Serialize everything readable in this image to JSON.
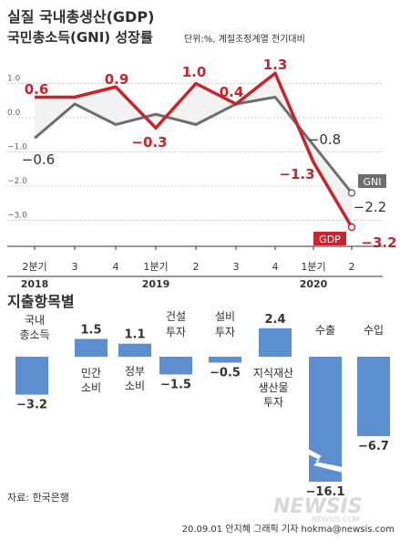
{
  "title_line1": "실질 국내총생산(GDP)",
  "title_line2": "국민총소득(GNI) 성장률",
  "unit_note": "단위:%, 계절조정계열 전기대비",
  "chart_data": [
    {
      "type": "line",
      "categories": [
        "2분기",
        "3",
        "4",
        "1분기",
        "2",
        "3",
        "4",
        "1분기",
        "2"
      ],
      "year_labels": [
        {
          "text": "2018",
          "index": 0
        },
        {
          "text": "2019",
          "index": 3
        },
        {
          "text": "2020",
          "index": 7
        }
      ],
      "y_ticks": [
        "1.0",
        "0.0",
        "-1.0",
        "-2.0",
        "-3.0"
      ],
      "ylim": [
        -3.5,
        1.6
      ],
      "series": [
        {
          "name": "GDP",
          "color": "#c8242b",
          "values": [
            0.6,
            0.6,
            0.9,
            -0.3,
            1.0,
            0.4,
            1.3,
            -1.3,
            -3.2
          ],
          "labels": [
            "0.6",
            "",
            "0.9",
            "-0.3",
            "1.0",
            "0.4",
            "1.3",
            "-1.3",
            "-3.2"
          ]
        },
        {
          "name": "GNI",
          "color": "#6d6d6d",
          "values": [
            -0.6,
            0.4,
            -0.2,
            0.1,
            -0.2,
            0.4,
            0.6,
            -0.8,
            -2.2
          ],
          "labels": [
            "-0.6",
            "",
            "",
            "",
            "",
            "",
            "",
            "-0.8",
            "-2.2"
          ]
        }
      ],
      "grid": true
    },
    {
      "type": "bar",
      "title": "지출항목별",
      "categories": [
        [
          "국내",
          "총소득"
        ],
        [
          "민간",
          "소비"
        ],
        [
          "정부",
          "소비"
        ],
        [
          "건설",
          "투자"
        ],
        [
          "설비",
          "투자"
        ],
        [
          "지식재산",
          "생산물",
          "투자"
        ],
        [
          "수출"
        ],
        [
          "수입"
        ]
      ],
      "values": [
        -3.2,
        1.5,
        1.1,
        -1.5,
        -0.5,
        2.4,
        -16.1,
        -6.7
      ],
      "value_labels": [
        "-3.2",
        "1.5",
        "1.1",
        "-1.5",
        "-0.5",
        "2.4",
        "-16.1",
        "-6.7"
      ],
      "axis_break_on": "수출",
      "bar_color": "#5b8fcf"
    }
  ],
  "source": "자료: 한국은행",
  "credit": "20.09.01 안지혜 그래픽 기자 hokma@newsis.com",
  "watermark": "NEWSIS",
  "watermark_sub": "NEWSIS.COM"
}
